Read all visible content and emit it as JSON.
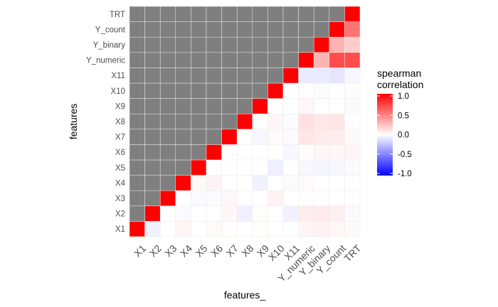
{
  "chart_data": {
    "type": "heatmap",
    "title": "",
    "xlabel": "features_",
    "ylabel": "features",
    "x_categories": [
      "X1",
      "X2",
      "X3",
      "X4",
      "X5",
      "X6",
      "X7",
      "X8",
      "X9",
      "X10",
      "X11",
      "Y_numeric",
      "Y_binary",
      "Y_count",
      "TRT"
    ],
    "y_categories": [
      "X1",
      "X2",
      "X3",
      "X4",
      "X5",
      "X6",
      "X7",
      "X8",
      "X9",
      "X10",
      "X11",
      "Y_numeric",
      "Y_binary",
      "Y_count",
      "TRT"
    ],
    "lower_triangle_fill": "#7f7f7f",
    "color_scale": {
      "low": "#0000ff",
      "mid": "#ffffff",
      "high": "#ff0000",
      "limits": [
        -1,
        1
      ]
    },
    "legend": {
      "title_lines": [
        "spearman",
        "correlation"
      ],
      "ticks": [
        1.0,
        0.5,
        0.0,
        -0.5,
        -1.0
      ],
      "tick_labels": [
        "1.0",
        "0.5",
        "0.0",
        "-0.5",
        "-1.0"
      ],
      "position": "right"
    },
    "matrix": [
      [
        1.0,
        -0.06,
        0.0,
        0.04,
        0.0,
        0.02,
        0.01,
        0.0,
        0.01,
        0.0,
        0.0,
        0.04,
        0.05,
        0.03,
        0.02
      ],
      [
        -0.06,
        1.0,
        0.0,
        -0.02,
        0.0,
        0.0,
        0.03,
        -0.06,
        0.01,
        0.0,
        -0.05,
        0.07,
        0.08,
        0.06,
        -0.02
      ],
      [
        0.0,
        0.0,
        1.0,
        0.0,
        -0.02,
        -0.01,
        0.03,
        0.0,
        0.0,
        0.05,
        0.0,
        0.0,
        0.0,
        0.0,
        0.0
      ],
      [
        0.04,
        -0.02,
        0.0,
        1.0,
        0.02,
        0.05,
        0.0,
        0.0,
        -0.05,
        0.0,
        -0.02,
        0.02,
        0.0,
        0.0,
        0.0
      ],
      [
        0.0,
        0.0,
        -0.02,
        0.02,
        1.0,
        0.0,
        0.0,
        0.0,
        0.0,
        -0.06,
        0.0,
        -0.03,
        -0.04,
        -0.03,
        -0.02
      ],
      [
        0.02,
        0.0,
        -0.01,
        0.05,
        0.0,
        1.0,
        0.0,
        0.0,
        0.0,
        0.0,
        -0.03,
        0.01,
        0.03,
        0.03,
        0.04
      ],
      [
        0.01,
        0.03,
        0.03,
        0.0,
        0.0,
        0.0,
        1.0,
        0.0,
        -0.03,
        0.02,
        -0.02,
        0.1,
        0.08,
        0.07,
        0.02
      ],
      [
        0.0,
        -0.06,
        0.0,
        0.0,
        0.0,
        0.0,
        0.0,
        1.0,
        0.0,
        0.03,
        -0.02,
        0.12,
        0.09,
        0.1,
        0.0
      ],
      [
        0.01,
        0.01,
        0.0,
        -0.05,
        0.0,
        0.0,
        -0.03,
        0.0,
        1.0,
        0.0,
        0.0,
        0.03,
        0.0,
        0.0,
        0.02
      ],
      [
        0.0,
        0.0,
        0.05,
        0.0,
        -0.06,
        0.0,
        0.02,
        0.03,
        0.0,
        1.0,
        0.0,
        0.01,
        -0.01,
        0.0,
        0.01
      ],
      [
        0.0,
        -0.05,
        0.0,
        -0.02,
        0.0,
        -0.03,
        -0.02,
        -0.02,
        0.0,
        0.0,
        1.0,
        -0.08,
        -0.08,
        -0.1,
        -0.03
      ],
      [
        0.04,
        0.07,
        0.0,
        0.02,
        -0.03,
        0.01,
        0.1,
        0.12,
        0.03,
        0.01,
        -0.08,
        1.0,
        0.3,
        0.7,
        0.7
      ],
      [
        0.05,
        0.08,
        0.0,
        0.0,
        -0.04,
        0.03,
        0.08,
        0.09,
        0.0,
        -0.01,
        -0.08,
        0.3,
        1.0,
        0.3,
        0.2
      ],
      [
        0.03,
        0.06,
        0.0,
        0.0,
        -0.03,
        0.03,
        0.07,
        0.1,
        0.0,
        0.0,
        -0.1,
        0.7,
        0.3,
        1.0,
        0.55
      ],
      [
        0.02,
        -0.02,
        0.0,
        0.0,
        -0.02,
        0.04,
        0.02,
        0.0,
        0.02,
        0.01,
        -0.03,
        0.7,
        0.2,
        0.55,
        1.0
      ]
    ]
  }
}
